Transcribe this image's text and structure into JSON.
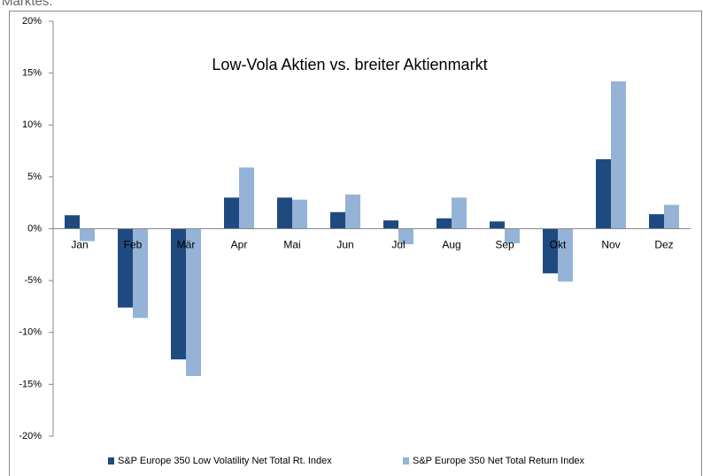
{
  "caption": "Marktes.",
  "chart_data": {
    "type": "bar",
    "title": "Low-Vola Aktien vs. breiter Aktienmarkt",
    "categories": [
      "Jan",
      "Feb",
      "Mär",
      "Apr",
      "Mai",
      "Jun",
      "Jul",
      "Aug",
      "Sep",
      "Okt",
      "Nov",
      "Dez"
    ],
    "series": [
      {
        "name": "S&P Europe 350 Low Volatility Net Total Rt. Index",
        "color": "#1f4a80",
        "values": [
          1.3,
          -7.6,
          -12.6,
          3.0,
          3.0,
          1.6,
          0.8,
          1.0,
          0.7,
          -4.3,
          6.7,
          1.4
        ]
      },
      {
        "name": "S&P Europe 350 Net Total Return Index",
        "color": "#95b3d7",
        "values": [
          -1.2,
          -8.6,
          -14.2,
          5.9,
          2.8,
          3.3,
          -1.5,
          3.0,
          -1.4,
          -5.1,
          14.2,
          2.3
        ]
      }
    ],
    "ylim": [
      -20,
      20
    ],
    "yticks": [
      {
        "value": -20,
        "label": "-20%"
      },
      {
        "value": -15,
        "label": "-15%"
      },
      {
        "value": -10,
        "label": "-10%"
      },
      {
        "value": -5,
        "label": "-5%"
      },
      {
        "value": 0,
        "label": "0%"
      },
      {
        "value": 5,
        "label": "5%"
      },
      {
        "value": 10,
        "label": "10%"
      },
      {
        "value": 15,
        "label": "15%"
      },
      {
        "value": 20,
        "label": "20%"
      }
    ],
    "grid": false,
    "legend": "bottom"
  }
}
